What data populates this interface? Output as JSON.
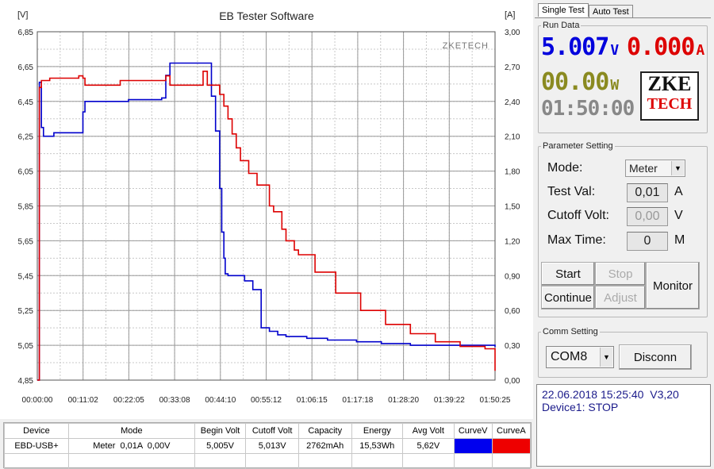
{
  "window": {
    "title": "EB Tester Software"
  },
  "chart": {
    "y_left_unit": "[V]",
    "y_right_unit": "[A]",
    "watermark": "ZKETECH",
    "y_left_ticks": [
      "6,85",
      "6,65",
      "6,45",
      "6,25",
      "6,05",
      "5,85",
      "5,65",
      "5,45",
      "5,25",
      "5,05",
      "4,85"
    ],
    "y_right_ticks": [
      "3,00",
      "2,70",
      "2,40",
      "2,10",
      "1,80",
      "1,50",
      "1,20",
      "0,90",
      "0,60",
      "0,30",
      "0,00"
    ],
    "x_ticks": [
      "00:00:00",
      "00:11:02",
      "00:22:05",
      "00:33:08",
      "00:44:10",
      "00:55:12",
      "01:06:15",
      "01:17:18",
      "01:28:20",
      "01:39:22",
      "01:50:25"
    ]
  },
  "chart_data": {
    "type": "line",
    "title": "EB Tester Software",
    "x_unit": "elapsed time (h:mm:ss)",
    "xlim": [
      "00:00:00",
      "01:50:25"
    ],
    "ylim_left": [
      4.85,
      6.85
    ],
    "ylim_right": [
      0.0,
      3.0
    ],
    "grid": true,
    "series": [
      {
        "name": "CurveV",
        "axis": "left",
        "unit": "V",
        "color": "#0000cc",
        "x": [
          "00:00:00",
          "00:00:30",
          "00:01:00",
          "00:01:30",
          "00:04:00",
          "00:10:00",
          "00:11:00",
          "00:11:30",
          "00:22:00",
          "00:30:00",
          "00:31:00",
          "00:32:00",
          "00:36:30",
          "00:40:00",
          "00:42:00",
          "00:43:00",
          "00:44:00",
          "00:44:30",
          "00:45:00",
          "00:45:20",
          "00:46:00",
          "00:50:00",
          "00:52:00",
          "00:54:00",
          "00:56:00",
          "00:58:00",
          "01:00:00",
          "01:05:00",
          "01:10:00",
          "01:17:00",
          "01:23:00",
          "01:30:00",
          "01:40:00",
          "01:50:25"
        ],
        "y": [
          4.85,
          6.56,
          6.3,
          6.25,
          6.27,
          6.27,
          6.39,
          6.45,
          6.46,
          6.47,
          6.6,
          6.67,
          6.67,
          6.67,
          6.48,
          6.28,
          5.95,
          5.7,
          5.55,
          5.46,
          5.45,
          5.42,
          5.37,
          5.15,
          5.13,
          5.11,
          5.1,
          5.09,
          5.08,
          5.07,
          5.06,
          5.05,
          5.05,
          5.04
        ]
      },
      {
        "name": "CurveA",
        "axis": "right",
        "unit": "A",
        "color": "#dd0000",
        "x": [
          "00:00:00",
          "00:00:30",
          "00:01:00",
          "00:03:00",
          "00:10:00",
          "00:11:00",
          "00:11:30",
          "00:20:00",
          "00:31:00",
          "00:32:00",
          "00:40:00",
          "00:41:00",
          "00:44:00",
          "00:45:00",
          "00:46:00",
          "00:47:00",
          "00:48:00",
          "00:49:00",
          "00:51:00",
          "00:53:00",
          "00:56:00",
          "00:57:00",
          "00:59:00",
          "01:00:00",
          "01:02:00",
          "01:03:00",
          "01:07:00",
          "01:12:00",
          "01:18:00",
          "01:24:00",
          "01:30:00",
          "01:36:00",
          "01:42:00",
          "01:48:00",
          "01:50:25"
        ],
        "y": [
          0.0,
          2.52,
          2.58,
          2.6,
          2.62,
          2.6,
          2.54,
          2.58,
          2.62,
          2.54,
          2.66,
          2.54,
          2.46,
          2.36,
          2.25,
          2.12,
          2.0,
          1.89,
          1.78,
          1.68,
          1.5,
          1.45,
          1.3,
          1.2,
          1.12,
          1.08,
          0.93,
          0.75,
          0.6,
          0.48,
          0.4,
          0.33,
          0.29,
          0.27,
          0.08
        ]
      }
    ]
  },
  "stats_table": {
    "headers": [
      "Device",
      "Mode",
      "Begin Volt",
      "Cutoff Volt",
      "Capacity",
      "Energy",
      "Avg Volt",
      "CurveV",
      "CurveA"
    ],
    "row": [
      "EBD-USB+",
      "Meter  0,01A  0,00V",
      "5,005V",
      "5,013V",
      "2762mAh",
      "15,53Wh",
      "5,62V"
    ],
    "curve_colors": [
      "#0000ee",
      "#ee0000"
    ]
  },
  "tabs": [
    "Single Test",
    "Auto Test"
  ],
  "run_data": {
    "title": "Run Data",
    "voltage": "5.007",
    "voltage_unit": "V",
    "current": "0.000",
    "current_unit": "A",
    "power": "00.00",
    "power_unit": "W",
    "time": "01:50:00",
    "logo_top": "ZKE",
    "logo_bottom": "TECH",
    "colors": {
      "voltage": "#0000dd",
      "current": "#dd0000",
      "power": "#8a8a20",
      "time": "#888888"
    }
  },
  "params": {
    "title": "Parameter Setting",
    "mode_label": "Mode:",
    "mode_value": "Meter",
    "test_val_label": "Test Val:",
    "test_val_value": "0,01",
    "test_val_unit": "A",
    "cutoff_label": "Cutoff Volt:",
    "cutoff_value": "0,00",
    "cutoff_unit": "V",
    "max_time_label": "Max Time:",
    "max_time_value": "0",
    "max_time_unit": "M"
  },
  "buttons": {
    "start": "Start",
    "stop": "Stop",
    "continue": "Continue",
    "adjust": "Adjust",
    "monitor": "Monitor"
  },
  "comm": {
    "title": "Comm Setting",
    "port": "COM8",
    "disconnect": "Disconn"
  },
  "log": {
    "line1": "22.06.2018 15:25:40  V3,20",
    "line2": "Device1: STOP"
  }
}
